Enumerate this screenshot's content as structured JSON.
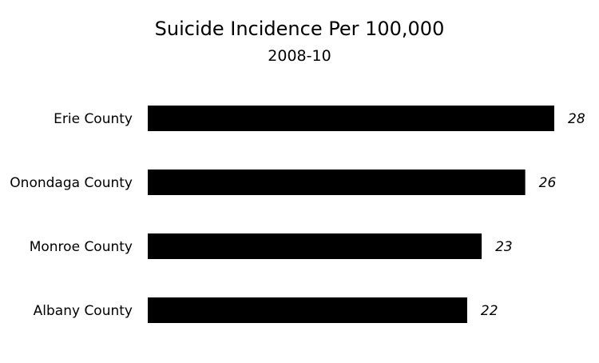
{
  "chart_data": {
    "type": "bar",
    "orientation": "horizontal",
    "title": "Suicide Incidence Per 100,000",
    "subtitle": "2008-10",
    "categories": [
      "Erie County",
      "Onondaga County",
      "Monroe County",
      "Albany County"
    ],
    "values": [
      28,
      26,
      23,
      22
    ],
    "data_labels": [
      "28",
      "26",
      "23",
      "22"
    ],
    "xlim": [
      0,
      28
    ],
    "grid": false,
    "legend": "none",
    "bar_color": "#000000"
  }
}
